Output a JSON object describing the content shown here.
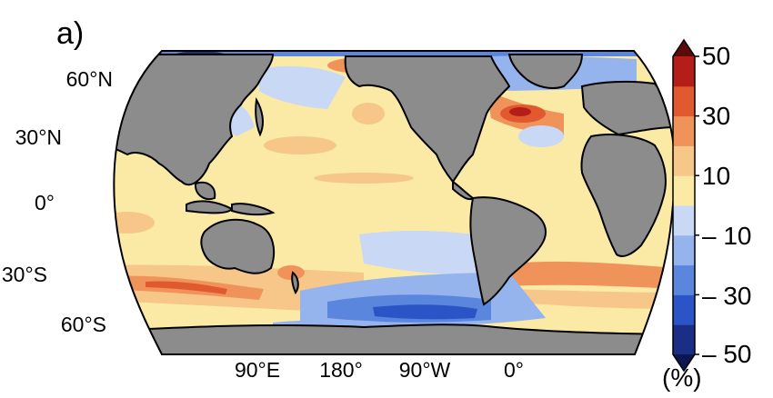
{
  "panel_label": "a)",
  "map": {
    "projection": "robinson",
    "center_longitude": 180,
    "land_color": "#8c8c8c",
    "coastline_color": "#000000",
    "latitude_labels": [
      "60°N",
      "30°N",
      "0°",
      "30°S",
      "60°S"
    ],
    "longitude_labels": [
      "90°E",
      "180°",
      "90°W",
      "0°"
    ]
  },
  "colorbar": {
    "unit": "(%)",
    "tick_labels": [
      "50",
      "30",
      "10",
      "– 10",
      "– 30",
      "– 50"
    ],
    "levels": [
      -50,
      -40,
      -30,
      -20,
      -10,
      0,
      10,
      20,
      30,
      40,
      50
    ],
    "colors": [
      "#1a2e86",
      "#2b55c6",
      "#5a86de",
      "#95b4ee",
      "#c9d8f5",
      "#fbeaa6",
      "#f7c689",
      "#f0935a",
      "#e15a2f",
      "#b51e18"
    ],
    "extend_low_color": "#0c1652",
    "extend_high_color": "#5c0a0a"
  }
}
